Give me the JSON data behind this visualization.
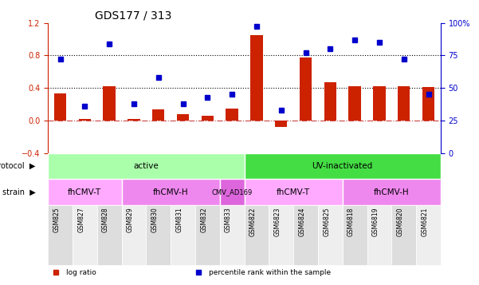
{
  "title": "GDS177 / 313",
  "samples": [
    "GSM825",
    "GSM827",
    "GSM828",
    "GSM829",
    "GSM830",
    "GSM831",
    "GSM832",
    "GSM833",
    "GSM6822",
    "GSM6823",
    "GSM6824",
    "GSM6825",
    "GSM6818",
    "GSM6819",
    "GSM6820",
    "GSM6821"
  ],
  "log_ratio": [
    0.33,
    0.02,
    0.42,
    0.02,
    0.14,
    0.08,
    0.06,
    0.15,
    1.05,
    -0.08,
    0.77,
    0.47,
    0.42,
    0.42,
    0.42,
    0.41
  ],
  "percentile": [
    0.72,
    0.36,
    0.84,
    0.38,
    0.58,
    0.38,
    0.43,
    0.45,
    0.97,
    0.33,
    0.77,
    0.8,
    0.87,
    0.85,
    0.72,
    0.45
  ],
  "bar_color": "#cc2200",
  "dot_color": "#0000cc",
  "ylim_left": [
    -0.4,
    1.2
  ],
  "ylim_right": [
    0,
    100
  ],
  "yticks_left": [
    -0.4,
    0.0,
    0.4,
    0.8,
    1.2
  ],
  "yticks_right": [
    0,
    25,
    50,
    75,
    100
  ],
  "hlines": [
    0.0,
    0.4,
    0.8
  ],
  "hline_styles": [
    "dashdot",
    "dotted",
    "dotted"
  ],
  "protocol_groups": [
    {
      "label": "active",
      "start": 0,
      "end": 8,
      "color": "#aaffaa"
    },
    {
      "label": "UV-inactivated",
      "start": 8,
      "end": 16,
      "color": "#44dd44"
    }
  ],
  "strain_groups": [
    {
      "label": "fhCMV-T",
      "start": 0,
      "end": 3,
      "color": "#ffaaff"
    },
    {
      "label": "fhCMV-H",
      "start": 3,
      "end": 7,
      "color": "#ee88ee"
    },
    {
      "label": "CMV_AD169",
      "start": 7,
      "end": 8,
      "color": "#dd66dd"
    },
    {
      "label": "fhCMV-T",
      "start": 8,
      "end": 12,
      "color": "#ffaaff"
    },
    {
      "label": "fhCMV-H",
      "start": 12,
      "end": 16,
      "color": "#ee88ee"
    }
  ],
  "legend_items": [
    {
      "label": "log ratio",
      "color": "#cc2200"
    },
    {
      "label": "percentile rank within the sample",
      "color": "#0000cc"
    }
  ],
  "protocol_label": "protocol",
  "strain_label": "strain"
}
